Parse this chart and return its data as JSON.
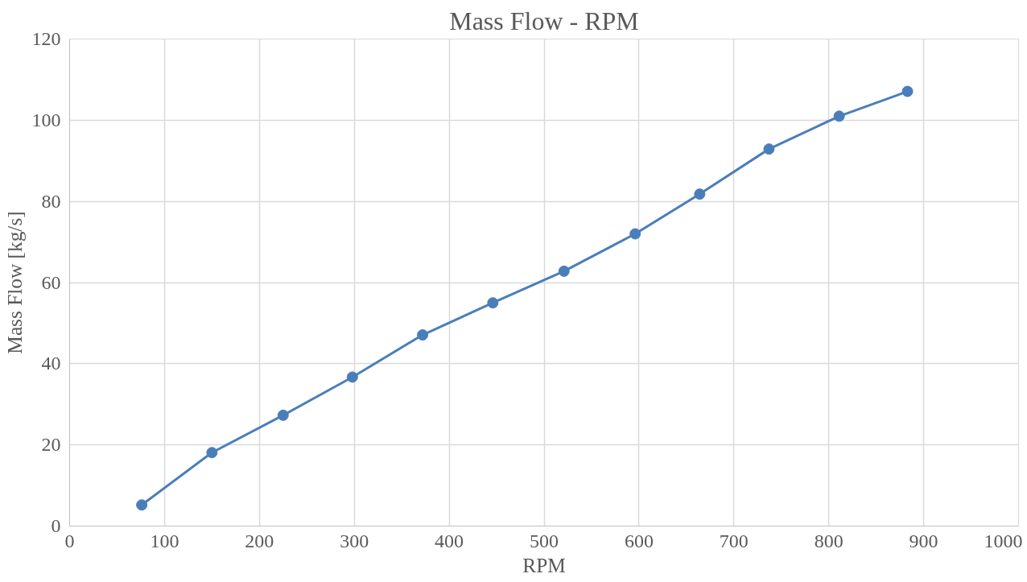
{
  "chart_data": {
    "type": "line",
    "title": "Mass Flow - RPM",
    "xlabel": "RPM",
    "ylabel": "Mass Flow [kg/s]",
    "x": [
      76,
      150,
      225,
      298,
      372,
      446,
      521,
      596,
      664,
      737,
      811,
      883
    ],
    "series": [
      {
        "color": "#4a7ebb",
        "values": [
          5.2,
          18.1,
          27.3,
          36.7,
          47.1,
          55.0,
          62.8,
          72.0,
          81.8,
          92.9,
          101.0,
          107.1
        ]
      }
    ],
    "xlim": [
      0,
      1000
    ],
    "xticks": [
      0,
      100,
      200,
      300,
      400,
      500,
      600,
      700,
      800,
      900,
      1000
    ],
    "ylim": [
      0,
      120
    ],
    "yticks": [
      0,
      20,
      40,
      60,
      80,
      100,
      120
    ],
    "grid": true,
    "marker": "circle",
    "line_style": "solid"
  }
}
